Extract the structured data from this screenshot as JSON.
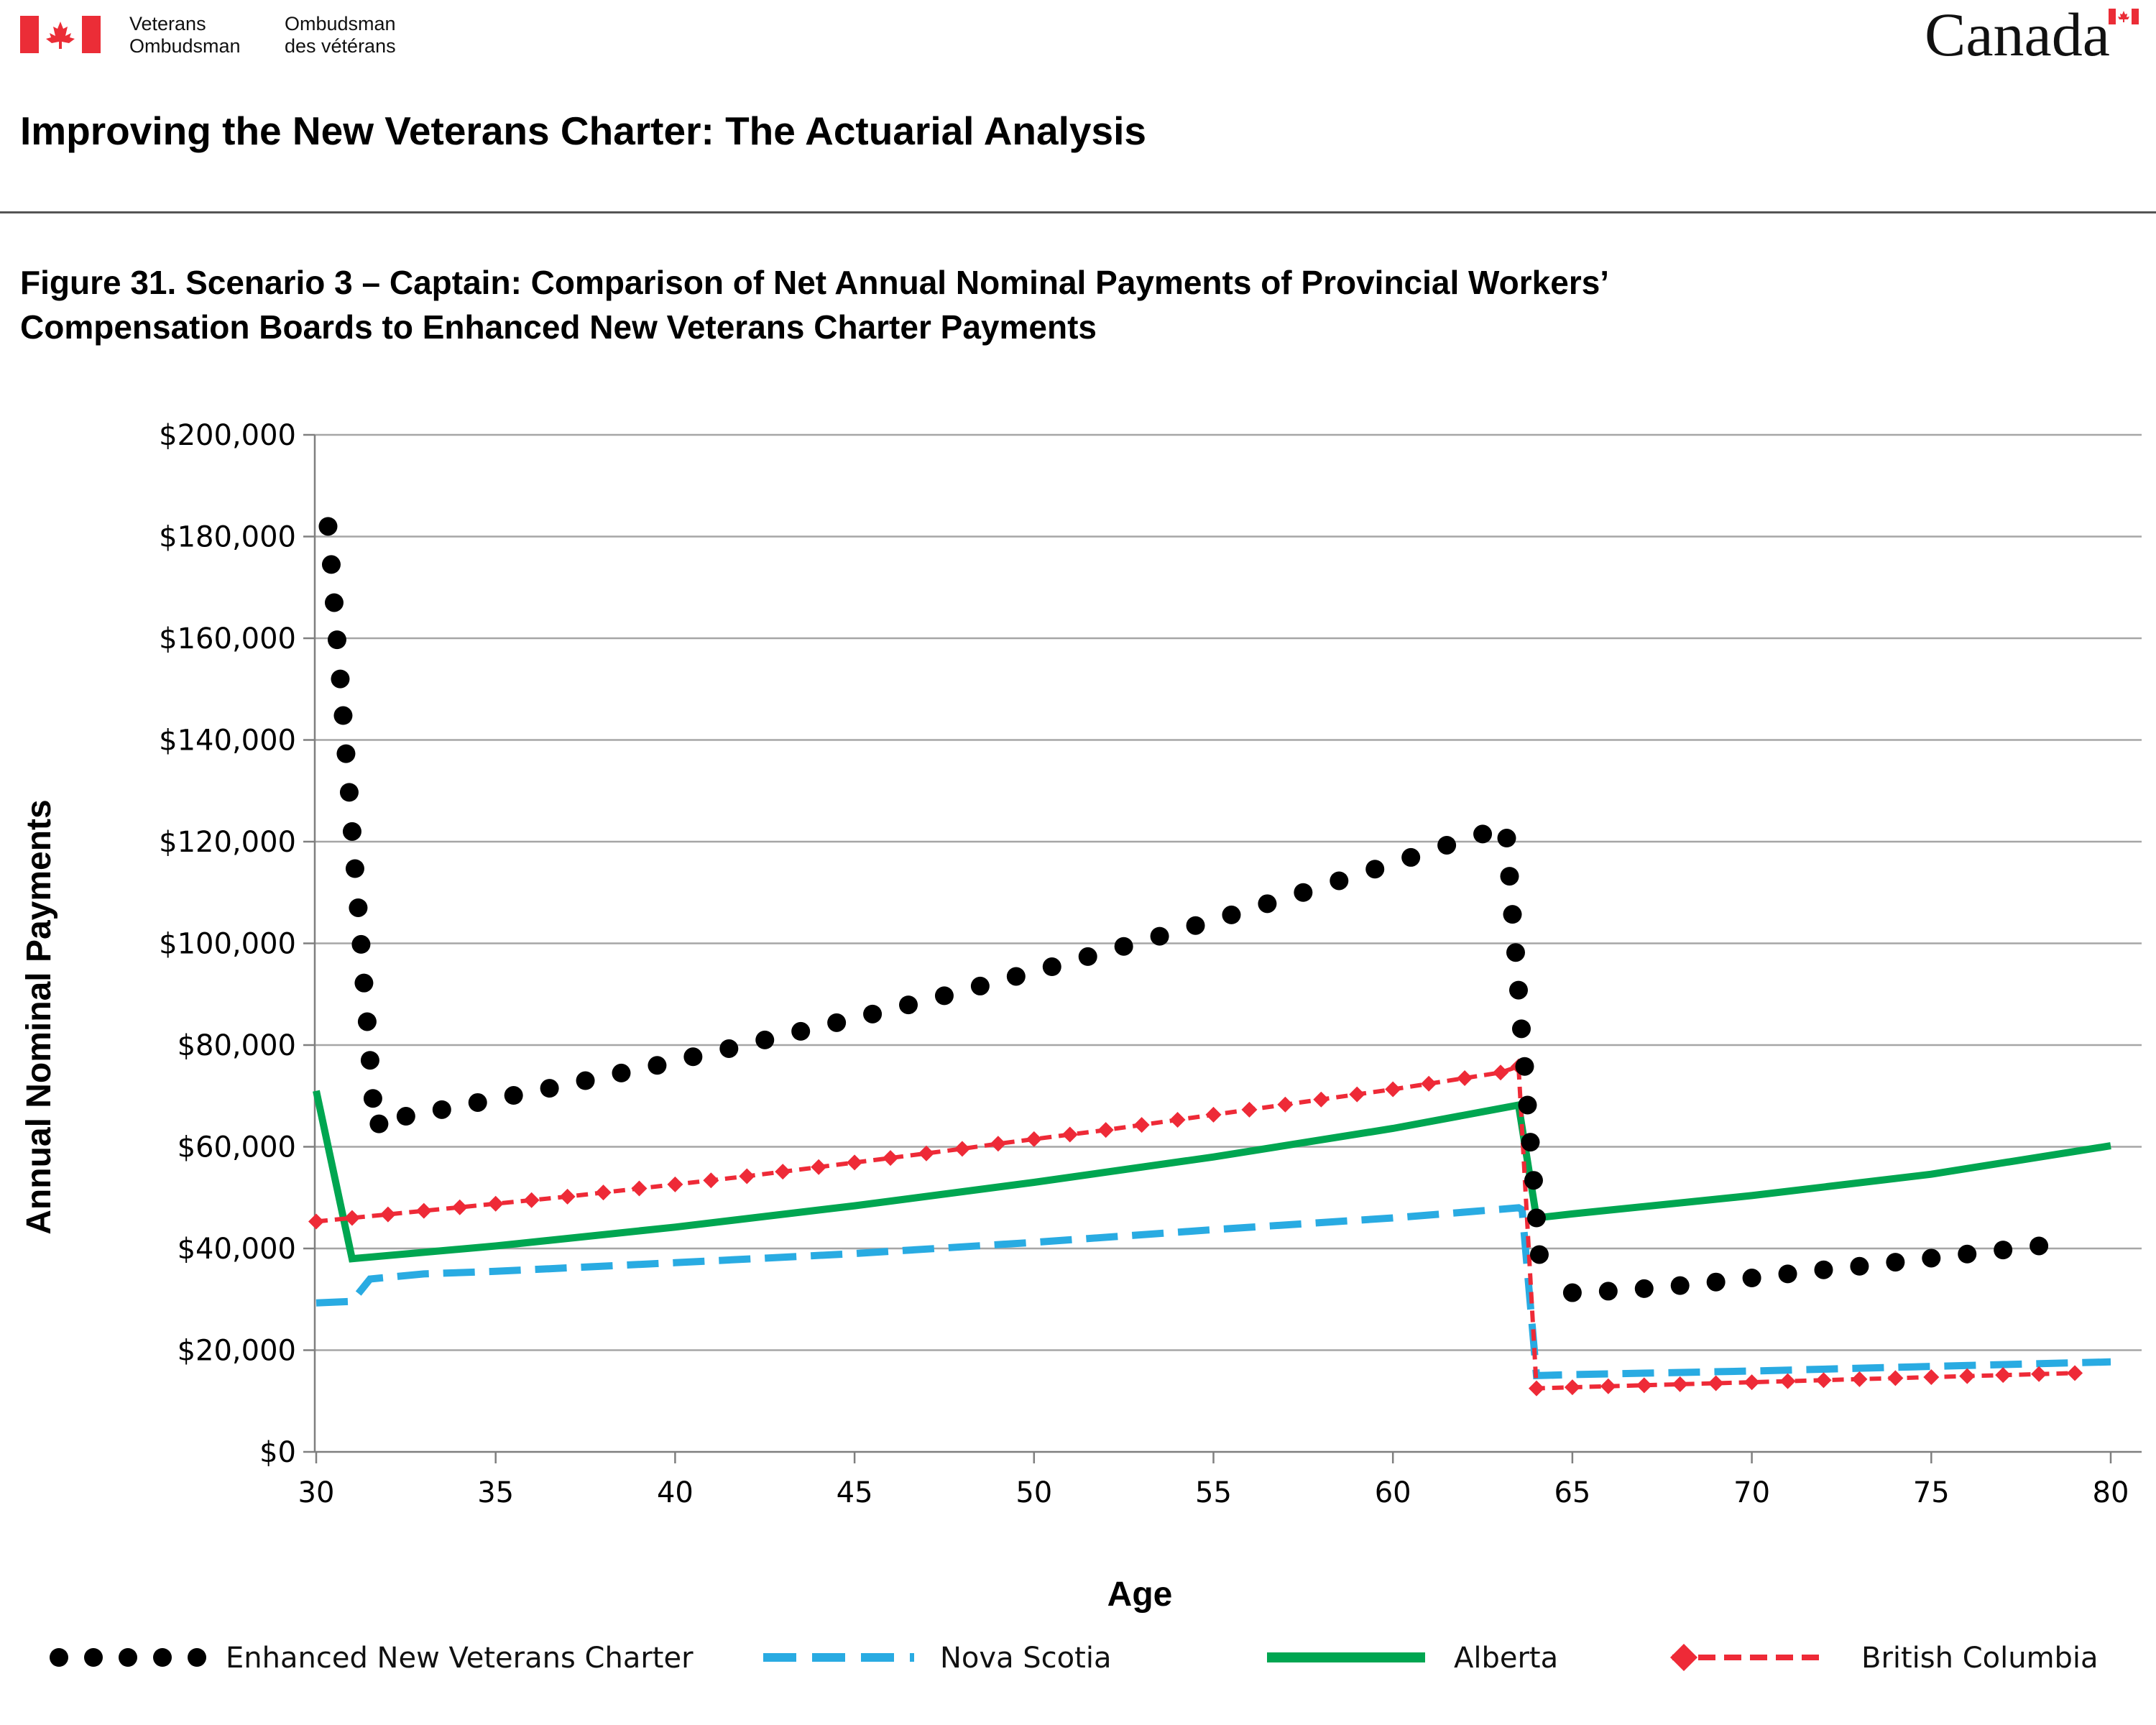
{
  "header": {
    "org_en": [
      "Veterans",
      "Ombudsman"
    ],
    "org_fr": [
      "Ombudsman",
      "des vétérans"
    ],
    "wordmark": "Canada",
    "title": "Improving the New Veterans Charter: The Actuarial Analysis"
  },
  "figure": {
    "title_line1": "Figure 31. Scenario 3 – Captain: Comparison of Net Annual Nominal Payments of Provincial Workers’",
    "title_line2": "Compensation Boards to Enhanced New Veterans Charter Payments"
  },
  "colors": {
    "brand_red": "#EB2D37",
    "gridline": "#A6A6A6",
    "axis": "#7F7F7F"
  },
  "chart_data": {
    "type": "line",
    "xlabel": "Age",
    "ylabel": "Annual Nominal Payments",
    "xlim": [
      30,
      80
    ],
    "ylim": [
      0,
      200000
    ],
    "x_ticks": [
      30,
      35,
      40,
      45,
      50,
      55,
      60,
      65,
      70,
      75,
      80
    ],
    "y_ticks": [
      0,
      20000,
      40000,
      60000,
      80000,
      100000,
      120000,
      140000,
      160000,
      180000,
      200000
    ],
    "y_tick_labels": [
      "$0",
      "$20,000",
      "$40,000",
      "$60,000",
      "$80,000",
      "$100,000",
      "$120,000",
      "$140,000",
      "$160,000",
      "$180,000",
      "$200,000"
    ],
    "grid": true,
    "legend": "bottom",
    "series": [
      {
        "name": "Enhanced New Veterans Charter",
        "style": "dotted",
        "color": "#000000",
        "points": [
          [
            30.33,
            182000
          ],
          [
            30.42,
            174500
          ],
          [
            30.5,
            167000
          ],
          [
            30.58,
            159700
          ],
          [
            30.67,
            152000
          ],
          [
            30.75,
            144800
          ],
          [
            30.83,
            137300
          ],
          [
            30.92,
            129700
          ],
          [
            31.0,
            122000
          ],
          [
            31.08,
            114700
          ],
          [
            31.17,
            107000
          ],
          [
            31.25,
            99800
          ],
          [
            31.33,
            92200
          ],
          [
            31.42,
            84600
          ],
          [
            31.5,
            77000
          ],
          [
            31.58,
            69500
          ],
          [
            31.75,
            64500
          ],
          [
            32.5,
            66000
          ],
          [
            33.5,
            67300
          ],
          [
            34.5,
            68700
          ],
          [
            35.5,
            70100
          ],
          [
            36.5,
            71500
          ],
          [
            37.5,
            73000
          ],
          [
            38.5,
            74500
          ],
          [
            39.5,
            76000
          ],
          [
            40.5,
            77700
          ],
          [
            41.5,
            79300
          ],
          [
            42.5,
            81000
          ],
          [
            43.5,
            82700
          ],
          [
            44.5,
            84400
          ],
          [
            45.5,
            86100
          ],
          [
            46.5,
            87900
          ],
          [
            47.5,
            89700
          ],
          [
            48.5,
            91600
          ],
          [
            49.5,
            93500
          ],
          [
            50.5,
            95400
          ],
          [
            51.5,
            97400
          ],
          [
            52.5,
            99400
          ],
          [
            53.5,
            101400
          ],
          [
            54.5,
            103500
          ],
          [
            55.5,
            105600
          ],
          [
            56.5,
            107800
          ],
          [
            57.5,
            110000
          ],
          [
            58.5,
            112300
          ],
          [
            59.5,
            114600
          ],
          [
            60.5,
            116900
          ],
          [
            61.5,
            119300
          ],
          [
            62.5,
            121500
          ],
          [
            63.17,
            120700
          ],
          [
            63.25,
            113200
          ],
          [
            63.33,
            105700
          ],
          [
            63.42,
            98200
          ],
          [
            63.5,
            90800
          ],
          [
            63.58,
            83200
          ],
          [
            63.67,
            75800
          ],
          [
            63.75,
            68200
          ],
          [
            63.83,
            60900
          ],
          [
            63.92,
            53400
          ],
          [
            64.0,
            46000
          ],
          [
            64.08,
            38800
          ],
          [
            65.0,
            31300
          ],
          [
            66.0,
            31600
          ],
          [
            67.0,
            32100
          ],
          [
            68.0,
            32700
          ],
          [
            69.0,
            33400
          ],
          [
            70.0,
            34200
          ],
          [
            71.0,
            35000
          ],
          [
            72.0,
            35800
          ],
          [
            73.0,
            36500
          ],
          [
            74.0,
            37300
          ],
          [
            75.0,
            38100
          ],
          [
            76.0,
            38900
          ],
          [
            77.0,
            39700
          ],
          [
            78.0,
            40500
          ]
        ]
      },
      {
        "name": "Nova Scotia",
        "style": "dashed",
        "color": "#29ABE2",
        "points": [
          [
            30.0,
            29300
          ],
          [
            31.0,
            29600
          ],
          [
            31.5,
            34000
          ],
          [
            33.0,
            35000
          ],
          [
            35.0,
            35500
          ],
          [
            40.0,
            37200
          ],
          [
            45.0,
            39000
          ],
          [
            50.0,
            41200
          ],
          [
            55.0,
            43700
          ],
          [
            60.0,
            46000
          ],
          [
            63.5,
            48000
          ],
          [
            63.6,
            47600
          ],
          [
            64.0,
            15000
          ],
          [
            65.0,
            15200
          ],
          [
            70.0,
            15900
          ],
          [
            75.0,
            16800
          ],
          [
            80.0,
            17700
          ]
        ]
      },
      {
        "name": "Alberta",
        "style": "solid",
        "color": "#00A651",
        "points": [
          [
            30.0,
            71000
          ],
          [
            31.0,
            38000
          ],
          [
            35.0,
            40500
          ],
          [
            40.0,
            44200
          ],
          [
            45.0,
            48400
          ],
          [
            50.0,
            53000
          ],
          [
            55.0,
            58000
          ],
          [
            60.0,
            63600
          ],
          [
            63.5,
            68200
          ],
          [
            64.0,
            46000
          ],
          [
            65.0,
            46800
          ],
          [
            70.0,
            50400
          ],
          [
            75.0,
            54600
          ],
          [
            80.0,
            60200
          ]
        ]
      },
      {
        "name": "British Columbia",
        "style": "dashed-diamond",
        "color": "#EE2A37",
        "points": [
          [
            30.0,
            45300
          ],
          [
            31.0,
            46000
          ],
          [
            32.0,
            46700
          ],
          [
            33.0,
            47400
          ],
          [
            34.0,
            48100
          ],
          [
            35.0,
            48800
          ],
          [
            36.0,
            49500
          ],
          [
            37.0,
            50200
          ],
          [
            38.0,
            51000
          ],
          [
            39.0,
            51800
          ],
          [
            40.0,
            52600
          ],
          [
            41.0,
            53400
          ],
          [
            42.0,
            54200
          ],
          [
            43.0,
            55100
          ],
          [
            44.0,
            56000
          ],
          [
            45.0,
            56900
          ],
          [
            46.0,
            57800
          ],
          [
            47.0,
            58700
          ],
          [
            48.0,
            59600
          ],
          [
            49.0,
            60600
          ],
          [
            50.0,
            61500
          ],
          [
            51.0,
            62400
          ],
          [
            52.0,
            63300
          ],
          [
            53.0,
            64300
          ],
          [
            54.0,
            65300
          ],
          [
            55.0,
            66300
          ],
          [
            56.0,
            67300
          ],
          [
            57.0,
            68300
          ],
          [
            58.0,
            69300
          ],
          [
            59.0,
            70300
          ],
          [
            60.0,
            71300
          ],
          [
            61.0,
            72400
          ],
          [
            62.0,
            73500
          ],
          [
            63.0,
            74600
          ],
          [
            63.5,
            75800
          ],
          [
            64.0,
            12500
          ],
          [
            65.0,
            12700
          ],
          [
            66.0,
            12900
          ],
          [
            67.0,
            13100
          ],
          [
            68.0,
            13300
          ],
          [
            69.0,
            13500
          ],
          [
            70.0,
            13700
          ],
          [
            71.0,
            13900
          ],
          [
            72.0,
            14100
          ],
          [
            73.0,
            14300
          ],
          [
            74.0,
            14500
          ],
          [
            75.0,
            14700
          ],
          [
            76.0,
            14900
          ],
          [
            77.0,
            15100
          ],
          [
            78.0,
            15300
          ],
          [
            79.0,
            15500
          ]
        ]
      }
    ]
  }
}
